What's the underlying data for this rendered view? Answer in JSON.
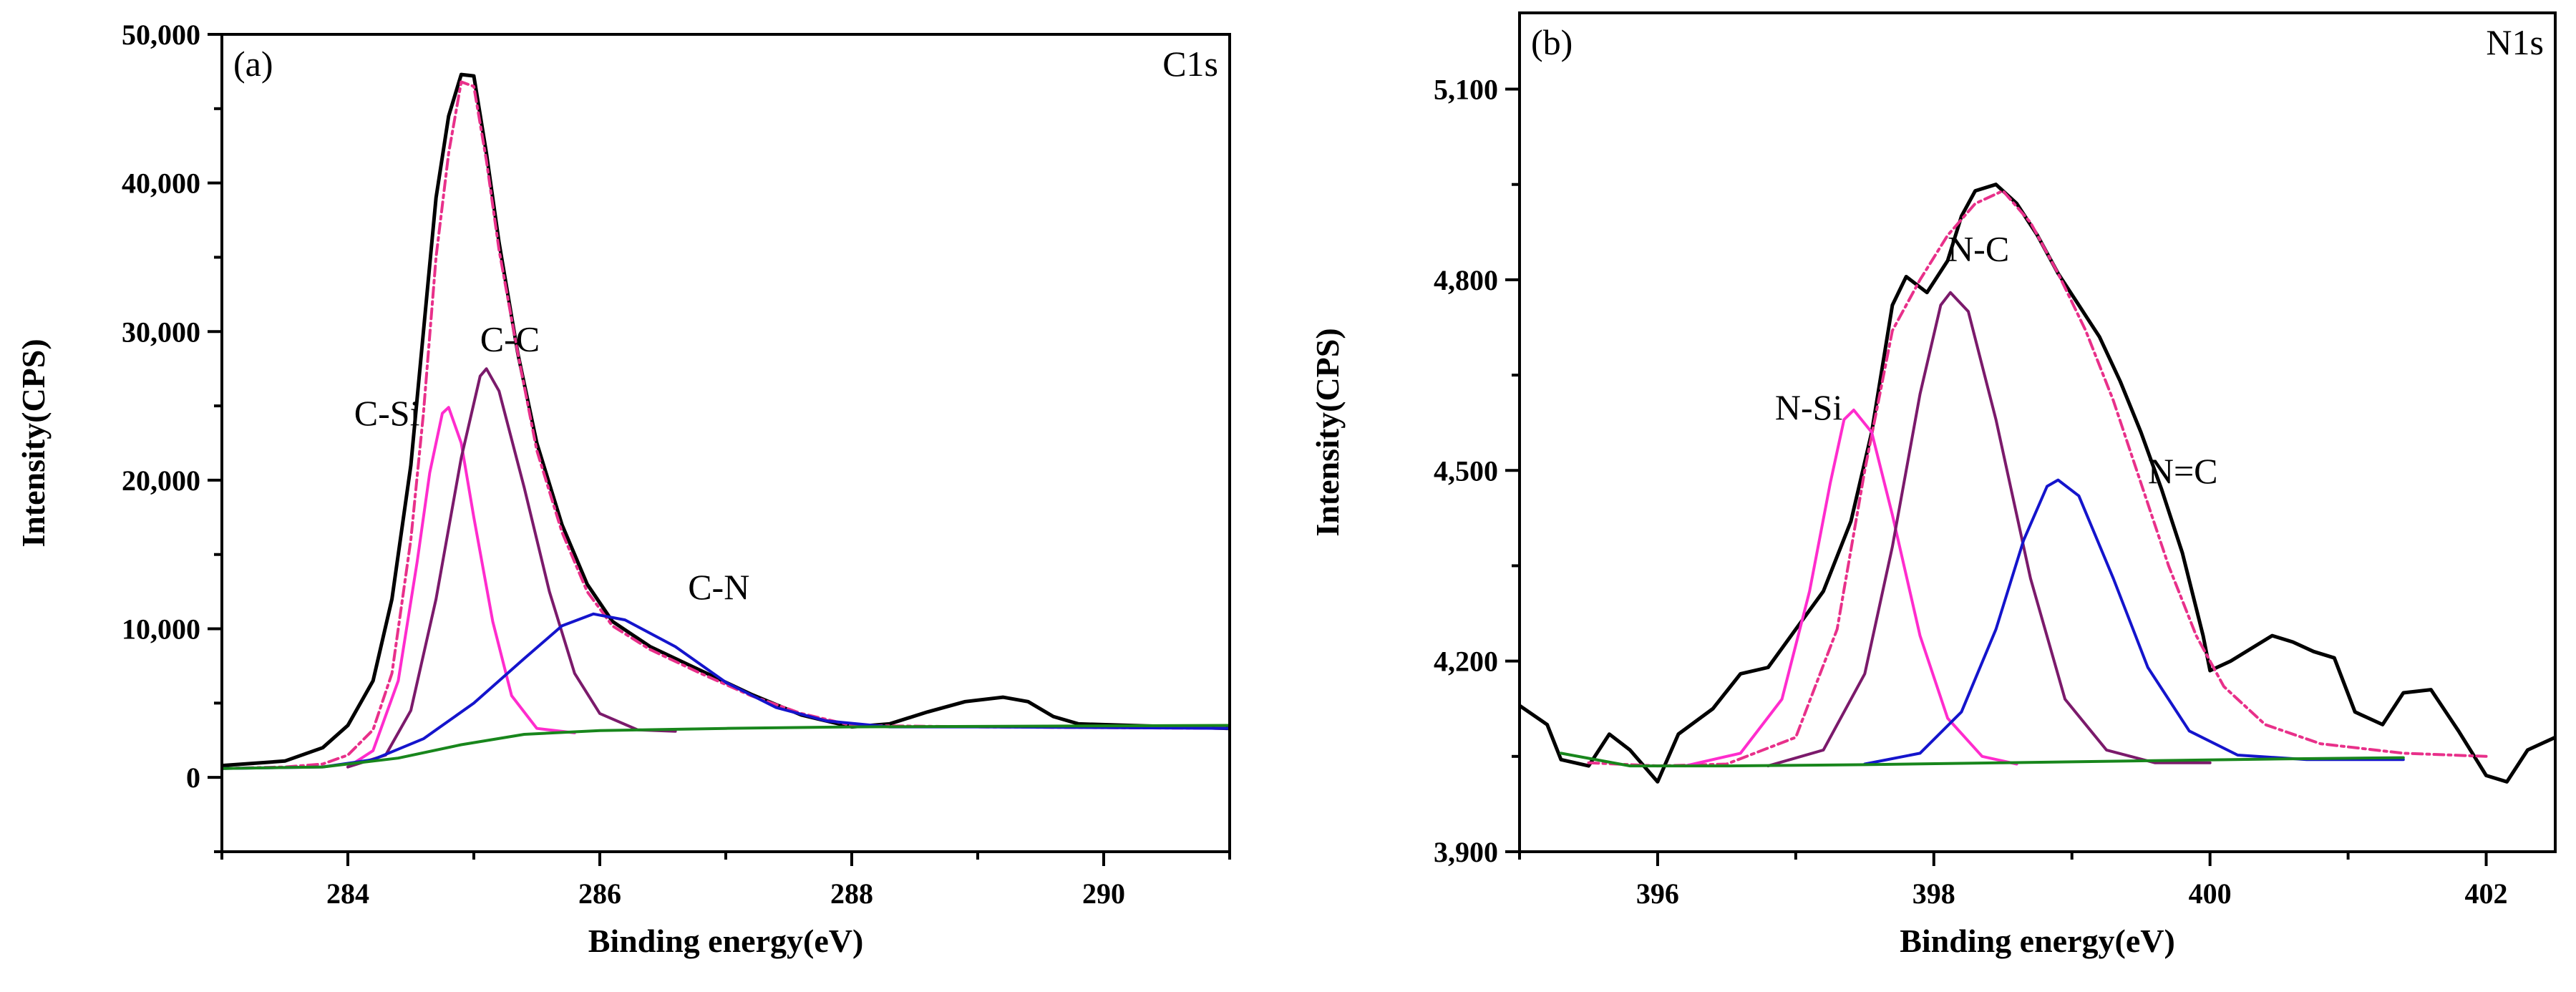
{
  "chart_data": [
    {
      "type": "line",
      "panel_label": "(a)",
      "corner_label": "C1s",
      "xlabel": "Binding energy(eV)",
      "ylabel": "Intensity(CPS)",
      "xlim": [
        283,
        291
      ],
      "ylim": [
        -5000,
        50000
      ],
      "xticks": [
        284,
        286,
        288,
        290
      ],
      "xtick_labels": [
        "284",
        "286",
        "288",
        "290"
      ],
      "yticks": [
        0,
        10000,
        20000,
        30000,
        40000,
        50000
      ],
      "ytick_labels": [
        "0",
        "10,000",
        "20,000",
        "30,000",
        "40,000",
        "50,000"
      ],
      "series": [
        {
          "name": "raw",
          "color": "#000000",
          "dash": "none",
          "points": [
            [
              283.0,
              800
            ],
            [
              283.5,
              1100
            ],
            [
              283.8,
              2000
            ],
            [
              284.0,
              3500
            ],
            [
              284.2,
              6500
            ],
            [
              284.35,
              12000
            ],
            [
              284.5,
              21000
            ],
            [
              284.6,
              30000
            ],
            [
              284.7,
              39000
            ],
            [
              284.8,
              44500
            ],
            [
              284.9,
              47300
            ],
            [
              285.0,
              47200
            ],
            [
              285.1,
              42000
            ],
            [
              285.2,
              36000
            ],
            [
              285.35,
              28500
            ],
            [
              285.5,
              22500
            ],
            [
              285.7,
              17000
            ],
            [
              285.9,
              13000
            ],
            [
              286.1,
              10500
            ],
            [
              286.4,
              8800
            ],
            [
              286.8,
              7200
            ],
            [
              287.2,
              5600
            ],
            [
              287.6,
              4200
            ],
            [
              288.0,
              3400
            ],
            [
              288.3,
              3600
            ],
            [
              288.6,
              4400
            ],
            [
              288.9,
              5100
            ],
            [
              289.2,
              5400
            ],
            [
              289.4,
              5100
            ],
            [
              289.6,
              4100
            ],
            [
              289.8,
              3600
            ],
            [
              290.2,
              3500
            ],
            [
              291.0,
              3300
            ]
          ]
        },
        {
          "name": "fit-envelope",
          "color": "#e8308a",
          "dash": "14,6,4,6",
          "points": [
            [
              283.0,
              600
            ],
            [
              283.5,
              700
            ],
            [
              283.8,
              900
            ],
            [
              284.0,
              1500
            ],
            [
              284.2,
              3200
            ],
            [
              284.35,
              7000
            ],
            [
              284.5,
              16000
            ],
            [
              284.6,
              24500
            ],
            [
              284.7,
              35000
            ],
            [
              284.8,
              42000
            ],
            [
              284.9,
              46800
            ],
            [
              285.0,
              46500
            ],
            [
              285.1,
              41500
            ],
            [
              285.2,
              35500
            ],
            [
              285.35,
              28500
            ],
            [
              285.5,
              22000
            ],
            [
              285.7,
              16500
            ],
            [
              285.9,
              12500
            ],
            [
              286.1,
              10200
            ],
            [
              286.4,
              8600
            ],
            [
              286.8,
              7000
            ],
            [
              287.2,
              5500
            ],
            [
              287.6,
              4300
            ],
            [
              288.0,
              3500
            ],
            [
              289.0,
              3400
            ],
            [
              291.0,
              3300
            ]
          ]
        },
        {
          "name": "C-Si",
          "color": "#ff2ccd",
          "dash": "none",
          "points": [
            [
              284.0,
              700
            ],
            [
              284.2,
              1800
            ],
            [
              284.4,
              6500
            ],
            [
              284.55,
              14500
            ],
            [
              284.65,
              20500
            ],
            [
              284.75,
              24500
            ],
            [
              284.8,
              24900
            ],
            [
              284.9,
              22500
            ],
            [
              285.0,
              17500
            ],
            [
              285.15,
              10500
            ],
            [
              285.3,
              5500
            ],
            [
              285.5,
              3300
            ],
            [
              285.8,
              3000
            ]
          ]
        },
        {
          "name": "C-C",
          "color": "#7b1a6b",
          "dash": "none",
          "points": [
            [
              284.0,
              700
            ],
            [
              284.3,
              1500
            ],
            [
              284.5,
              4500
            ],
            [
              284.7,
              12000
            ],
            [
              284.9,
              21500
            ],
            [
              285.05,
              27000
            ],
            [
              285.1,
              27500
            ],
            [
              285.2,
              26000
            ],
            [
              285.4,
              19500
            ],
            [
              285.6,
              12500
            ],
            [
              285.8,
              7000
            ],
            [
              286.0,
              4300
            ],
            [
              286.3,
              3200
            ],
            [
              286.6,
              3100
            ]
          ]
        },
        {
          "name": "C-N",
          "color": "#1414cc",
          "dash": "none",
          "points": [
            [
              283.0,
              600
            ],
            [
              283.8,
              700
            ],
            [
              284.2,
              1200
            ],
            [
              284.6,
              2600
            ],
            [
              285.0,
              5000
            ],
            [
              285.4,
              8000
            ],
            [
              285.7,
              10200
            ],
            [
              285.95,
              11000
            ],
            [
              286.2,
              10600
            ],
            [
              286.6,
              8800
            ],
            [
              287.0,
              6400
            ],
            [
              287.4,
              4700
            ],
            [
              287.8,
              3800
            ],
            [
              288.3,
              3400
            ],
            [
              289.0,
              3400
            ],
            [
              291.0,
              3300
            ]
          ]
        },
        {
          "name": "background",
          "color": "#18861c",
          "dash": "none",
          "points": [
            [
              283.0,
              600
            ],
            [
              283.8,
              700
            ],
            [
              284.4,
              1300
            ],
            [
              284.9,
              2200
            ],
            [
              285.4,
              2900
            ],
            [
              286.0,
              3150
            ],
            [
              287.0,
              3300
            ],
            [
              288.0,
              3400
            ],
            [
              291.0,
              3500
            ]
          ]
        }
      ],
      "annotations": [
        {
          "text": "C-C",
          "x": 285.05,
          "y": 28700
        },
        {
          "text": "C-Si",
          "x": 284.05,
          "y": 23700
        },
        {
          "text": "C-N",
          "x": 286.7,
          "y": 12000
        }
      ]
    },
    {
      "type": "line",
      "panel_label": "(b)",
      "corner_label": "N1s",
      "xlabel": "Binding energy(eV)",
      "ylabel": "Intensity(CPS)",
      "xlim": [
        395,
        402.5
      ],
      "ylim": [
        3900,
        5220
      ],
      "xticks": [
        396,
        398,
        400,
        402
      ],
      "xtick_labels": [
        "396",
        "398",
        "400",
        "402"
      ],
      "yticks": [
        3900,
        4200,
        4500,
        4800,
        5100
      ],
      "ytick_labels": [
        "3,900",
        "4,200",
        "4,500",
        "4,800",
        "5,100"
      ],
      "series": [
        {
          "name": "raw",
          "color": "#000000",
          "dash": "none",
          "points": [
            [
              395.0,
              4130
            ],
            [
              395.2,
              4100
            ],
            [
              395.3,
              4045
            ],
            [
              395.5,
              4035
            ],
            [
              395.65,
              4085
            ],
            [
              395.8,
              4060
            ],
            [
              396.0,
              4010
            ],
            [
              396.15,
              4085
            ],
            [
              396.4,
              4125
            ],
            [
              396.6,
              4180
            ],
            [
              396.8,
              4190
            ],
            [
              397.0,
              4250
            ],
            [
              397.2,
              4310
            ],
            [
              397.4,
              4420
            ],
            [
              397.55,
              4560
            ],
            [
              397.7,
              4760
            ],
            [
              397.8,
              4805
            ],
            [
              397.95,
              4780
            ],
            [
              398.1,
              4830
            ],
            [
              398.2,
              4900
            ],
            [
              398.3,
              4940
            ],
            [
              398.45,
              4950
            ],
            [
              398.6,
              4920
            ],
            [
              398.75,
              4870
            ],
            [
              398.9,
              4810
            ],
            [
              399.05,
              4760
            ],
            [
              399.2,
              4710
            ],
            [
              399.35,
              4640
            ],
            [
              399.5,
              4560
            ],
            [
              399.65,
              4470
            ],
            [
              399.8,
              4370
            ],
            [
              399.95,
              4240
            ],
            [
              400.0,
              4185
            ],
            [
              400.15,
              4200
            ],
            [
              400.3,
              4220
            ],
            [
              400.45,
              4240
            ],
            [
              400.6,
              4230
            ],
            [
              400.75,
              4215
            ],
            [
              400.9,
              4205
            ],
            [
              401.05,
              4120
            ],
            [
              401.25,
              4100
            ],
            [
              401.4,
              4150
            ],
            [
              401.6,
              4155
            ],
            [
              401.8,
              4090
            ],
            [
              402.0,
              4020
            ],
            [
              402.15,
              4010
            ],
            [
              402.3,
              4060
            ],
            [
              402.5,
              4080
            ]
          ]
        },
        {
          "name": "fit-envelope",
          "color": "#e8308a",
          "dash": "14,6,4,6",
          "points": [
            [
              395.5,
              4040
            ],
            [
              396.0,
              4035
            ],
            [
              396.5,
              4038
            ],
            [
              397.0,
              4080
            ],
            [
              397.3,
              4250
            ],
            [
              397.5,
              4500
            ],
            [
              397.7,
              4720
            ],
            [
              397.9,
              4800
            ],
            [
              398.1,
              4870
            ],
            [
              398.3,
              4920
            ],
            [
              398.5,
              4940
            ],
            [
              398.7,
              4890
            ],
            [
              398.9,
              4810
            ],
            [
              399.1,
              4720
            ],
            [
              399.3,
              4610
            ],
            [
              399.5,
              4480
            ],
            [
              399.7,
              4350
            ],
            [
              399.9,
              4240
            ],
            [
              400.1,
              4160
            ],
            [
              400.4,
              4100
            ],
            [
              400.8,
              4070
            ],
            [
              401.4,
              4055
            ],
            [
              402.0,
              4050
            ]
          ]
        },
        {
          "name": "N-Si",
          "color": "#ff2ccd",
          "dash": "none",
          "points": [
            [
              396.2,
              4035
            ],
            [
              396.6,
              4055
            ],
            [
              396.9,
              4140
            ],
            [
              397.1,
              4310
            ],
            [
              397.25,
              4480
            ],
            [
              397.35,
              4580
            ],
            [
              397.42,
              4595
            ],
            [
              397.55,
              4560
            ],
            [
              397.7,
              4430
            ],
            [
              397.9,
              4240
            ],
            [
              398.1,
              4110
            ],
            [
              398.35,
              4050
            ],
            [
              398.6,
              4038
            ]
          ]
        },
        {
          "name": "N-C",
          "color": "#7b1a6b",
          "dash": "none",
          "points": [
            [
              396.8,
              4035
            ],
            [
              397.2,
              4060
            ],
            [
              397.5,
              4180
            ],
            [
              397.7,
              4380
            ],
            [
              397.9,
              4620
            ],
            [
              398.05,
              4760
            ],
            [
              398.12,
              4780
            ],
            [
              398.25,
              4750
            ],
            [
              398.45,
              4580
            ],
            [
              398.7,
              4330
            ],
            [
              398.95,
              4140
            ],
            [
              399.25,
              4060
            ],
            [
              399.6,
              4040
            ],
            [
              400.0,
              4040
            ]
          ]
        },
        {
          "name": "N=C",
          "color": "#1414cc",
          "dash": "none",
          "points": [
            [
              397.5,
              4038
            ],
            [
              397.9,
              4055
            ],
            [
              398.2,
              4120
            ],
            [
              398.45,
              4250
            ],
            [
              398.65,
              4390
            ],
            [
              398.82,
              4475
            ],
            [
              398.9,
              4485
            ],
            [
              399.05,
              4460
            ],
            [
              399.3,
              4330
            ],
            [
              399.55,
              4190
            ],
            [
              399.85,
              4090
            ],
            [
              400.2,
              4052
            ],
            [
              400.7,
              4045
            ],
            [
              401.4,
              4045
            ]
          ]
        },
        {
          "name": "background",
          "color": "#18861c",
          "dash": "none",
          "points": [
            [
              395.3,
              4055
            ],
            [
              395.8,
              4035
            ],
            [
              396.5,
              4035
            ],
            [
              397.5,
              4037
            ],
            [
              398.5,
              4040
            ],
            [
              399.5,
              4043
            ],
            [
              400.5,
              4046
            ],
            [
              401.4,
              4048
            ]
          ]
        }
      ],
      "annotations": [
        {
          "text": "N-C",
          "x": 398.1,
          "y": 4830
        },
        {
          "text": "N-Si",
          "x": 396.85,
          "y": 4580
        },
        {
          "text": "N=C",
          "x": 399.55,
          "y": 4480
        }
      ]
    }
  ]
}
